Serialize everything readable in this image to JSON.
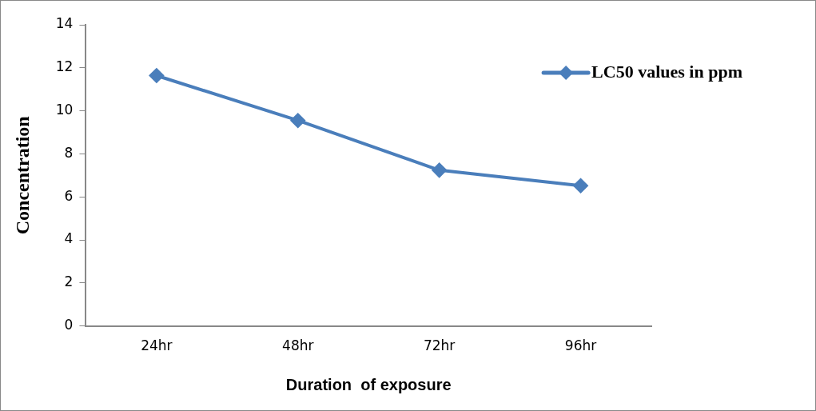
{
  "chart_data": {
    "type": "line",
    "xlabel": "Duration  of exposure",
    "ylabel": "Concentration",
    "categories": [
      "24hr",
      "48hr",
      "72hr",
      "96hr"
    ],
    "series": [
      {
        "name": "LC50 values in ppm",
        "color": "#4a7ebb",
        "values": [
          11.64,
          9.55,
          7.24,
          6.52
        ]
      }
    ],
    "ylim": [
      0,
      14
    ],
    "yticks": [
      0,
      2,
      4,
      6,
      8,
      10,
      12,
      14
    ],
    "grid": false,
    "legend": "right",
    "marker": "diamond",
    "line_style": "solid"
  }
}
